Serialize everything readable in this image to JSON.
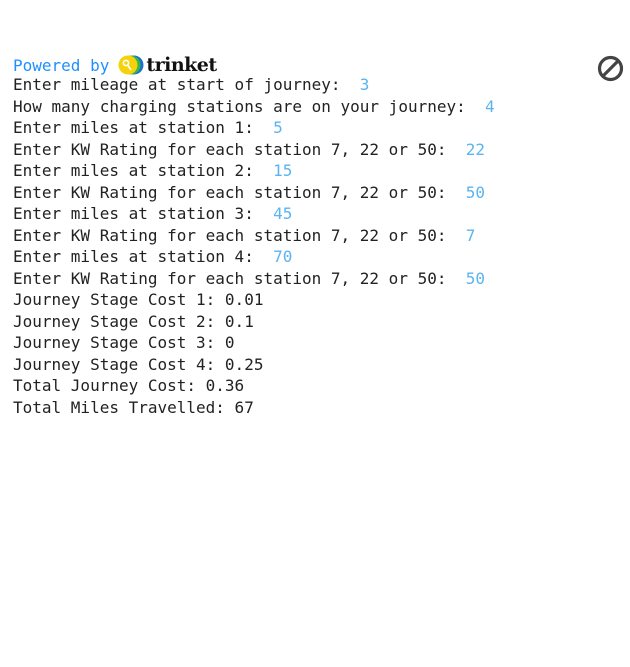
{
  "header": {
    "powered_by": "Powered by",
    "brand": "trinket",
    "stop_icon": "stop-icon"
  },
  "colors": {
    "powered": "#1e90ff",
    "input": "#5ab4f0",
    "text": "#222222"
  },
  "console": [
    {
      "prompt": "Enter mileage at start of journey:  ",
      "input": "3"
    },
    {
      "prompt": "How many charging stations are on your journey:  ",
      "input": "4"
    },
    {
      "prompt": "Enter miles at station 1:  ",
      "input": "5"
    },
    {
      "prompt": "Enter KW Rating for each station 7, 22 or 50:  ",
      "input": "22"
    },
    {
      "prompt": "Enter miles at station 2:  ",
      "input": "15"
    },
    {
      "prompt": "Enter KW Rating for each station 7, 22 or 50:  ",
      "input": "50"
    },
    {
      "prompt": "Enter miles at station 3:  ",
      "input": "45"
    },
    {
      "prompt": "Enter KW Rating for each station 7, 22 or 50:  ",
      "input": "7"
    },
    {
      "prompt": "Enter miles at station 4:  ",
      "input": "70"
    },
    {
      "prompt": "Enter KW Rating for each station 7, 22 or 50:  ",
      "input": "50"
    },
    {
      "prompt": "Journey Stage Cost 1: 0.01",
      "input": ""
    },
    {
      "prompt": "Journey Stage Cost 2: 0.1",
      "input": ""
    },
    {
      "prompt": "Journey Stage Cost 3: 0",
      "input": ""
    },
    {
      "prompt": "Journey Stage Cost 4: 0.25",
      "input": ""
    },
    {
      "prompt": "Total Journey Cost: 0.36",
      "input": ""
    },
    {
      "prompt": "Total Miles Travelled: 67",
      "input": ""
    }
  ]
}
